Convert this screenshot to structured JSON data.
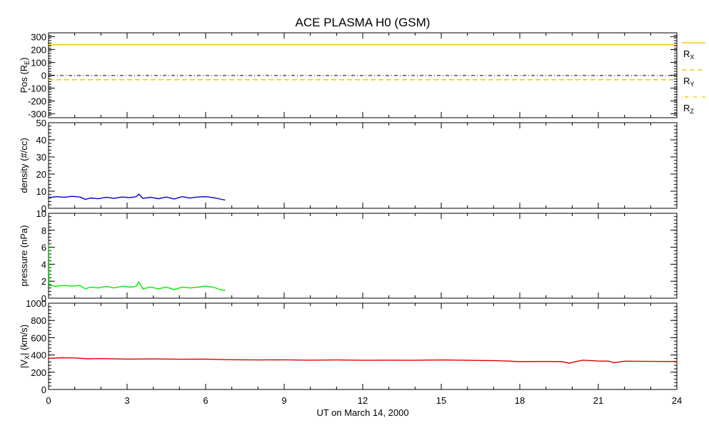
{
  "title": "ACE PLASMA H0 (GSM)",
  "xlabel": "UT on March 14, 2000",
  "colors": {
    "position": "#f0c000",
    "density": "#0000cc",
    "pressure": "#00ee00",
    "velocity": "#dd0000"
  },
  "chart_data": [
    {
      "type": "line",
      "ylabel": "Pos (R_E)",
      "ylabel_text": "Pos (R",
      "ylabel_sub": "E",
      "ylabel_close": ")",
      "ylim": [
        -330,
        330
      ],
      "xlim": [
        0,
        24
      ],
      "yticks": [
        -300,
        -200,
        -100,
        0,
        100,
        200,
        300
      ],
      "xticks": [
        0,
        3,
        6,
        9,
        12,
        15,
        18,
        21,
        24
      ],
      "series": [
        {
          "name": "R_X",
          "label_main": "R",
          "label_sub": "X",
          "dash": "solid",
          "x": [
            0,
            24
          ],
          "y": [
            237,
            237
          ]
        },
        {
          "name": "R_Y",
          "label_main": "R",
          "label_sub": "Y",
          "dash": "dashed",
          "x": [
            0,
            24
          ],
          "y": [
            -35,
            -35
          ]
        },
        {
          "name": "R_Z",
          "label_main": "R",
          "label_sub": "Z",
          "dash": "dashdot",
          "x": [
            0,
            24
          ],
          "y": [
            -2,
            -2
          ]
        }
      ]
    },
    {
      "type": "line",
      "ylabel": "density (#/cc)",
      "ylim": [
        0,
        50
      ],
      "xlim": [
        0,
        24
      ],
      "yticks": [
        0,
        10,
        20,
        30,
        40,
        50
      ],
      "xticks": [
        0,
        3,
        6,
        9,
        12,
        15,
        18,
        21,
        24
      ],
      "series": [
        {
          "x": [
            0,
            0.3,
            0.6,
            0.9,
            1.2,
            1.4,
            1.6,
            1.9,
            2.2,
            2.5,
            2.8,
            3.1,
            3.35,
            3.45,
            3.6,
            3.9,
            4.2,
            4.5,
            4.8,
            5.1,
            5.4,
            5.7,
            6.0,
            6.3,
            6.55,
            6.75
          ],
          "y": [
            6.2,
            6.8,
            6.4,
            7.0,
            6.6,
            5.2,
            6.0,
            5.6,
            6.4,
            5.8,
            6.6,
            6.2,
            6.8,
            8.3,
            5.8,
            6.4,
            5.6,
            6.6,
            5.4,
            6.8,
            6.0,
            6.6,
            6.8,
            6.2,
            5.4,
            4.8
          ]
        }
      ]
    },
    {
      "type": "line",
      "ylabel": "pressure (nPa)",
      "ylim": [
        0,
        10
      ],
      "xlim": [
        0,
        24
      ],
      "yticks": [
        0,
        2,
        4,
        6,
        8,
        10
      ],
      "xticks": [
        0,
        3,
        6,
        9,
        12,
        15,
        18,
        21,
        24
      ],
      "series": [
        {
          "x": [
            0,
            0.02,
            0.04,
            0.3,
            0.6,
            0.9,
            1.2,
            1.4,
            1.6,
            1.9,
            2.2,
            2.5,
            2.8,
            3.1,
            3.35,
            3.45,
            3.6,
            3.9,
            4.2,
            4.5,
            4.8,
            5.1,
            5.4,
            5.7,
            6.0,
            6.3,
            6.55,
            6.75
          ],
          "y": [
            6.5,
            1.8,
            1.5,
            1.4,
            1.5,
            1.4,
            1.5,
            1.1,
            1.3,
            1.2,
            1.4,
            1.2,
            1.4,
            1.3,
            1.4,
            1.9,
            1.1,
            1.3,
            1.1,
            1.3,
            1.0,
            1.3,
            1.2,
            1.3,
            1.4,
            1.3,
            1.0,
            0.9
          ]
        }
      ]
    },
    {
      "type": "line",
      "ylabel": "|V_X| (km/s)",
      "ylabel_text": "|V",
      "ylabel_sub": "X",
      "ylabel_close": "| (km/s)",
      "ylim": [
        0,
        1000
      ],
      "xlim": [
        0,
        24
      ],
      "yticks": [
        0,
        200,
        400,
        600,
        800,
        1000
      ],
      "xticks": [
        0,
        3,
        6,
        9,
        12,
        15,
        18,
        21,
        24
      ],
      "series": [
        {
          "x": [
            0,
            0.5,
            1.0,
            1.5,
            2.0,
            3.0,
            4.0,
            5.0,
            6.0,
            6.5,
            7.0,
            8.0,
            9.0,
            10.0,
            11.0,
            12.0,
            13.0,
            14.0,
            15.0,
            16.0,
            17.0,
            17.5,
            18.0,
            19.0,
            19.6,
            19.9,
            20.1,
            20.4,
            21.0,
            21.4,
            21.6,
            22.0,
            23.0,
            24.0
          ],
          "y": [
            360,
            368,
            365,
            355,
            358,
            352,
            354,
            350,
            352,
            348,
            345,
            342,
            344,
            340,
            342,
            338,
            340,
            338,
            342,
            338,
            334,
            330,
            322,
            325,
            322,
            305,
            320,
            340,
            330,
            328,
            310,
            328,
            326,
            324
          ]
        }
      ]
    }
  ]
}
